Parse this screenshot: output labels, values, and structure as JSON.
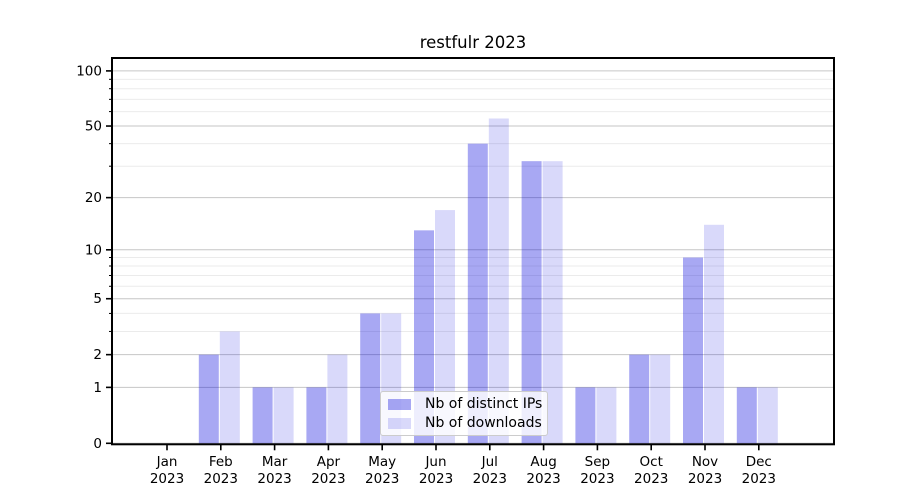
{
  "figure": {
    "title": "restfulr 2023"
  },
  "chart_data": {
    "type": "bar",
    "title": "restfulr 2023",
    "x_categories": [
      "Jan 2023",
      "Feb 2023",
      "Mar 2023",
      "Apr 2023",
      "May 2023",
      "Jun 2023",
      "Jul 2023",
      "Aug 2023",
      "Sep 2023",
      "Oct 2023",
      "Nov 2023",
      "Dec 2023"
    ],
    "series": [
      {
        "name": "Nb of distinct IPs",
        "color": "#0000dc",
        "opacity": 0.34,
        "values": [
          0,
          2,
          1,
          1,
          4,
          13,
          40,
          32,
          1,
          2,
          9,
          1
        ]
      },
      {
        "name": "Nb of downloads",
        "color": "#0000dc",
        "opacity": 0.15,
        "values": [
          0,
          3,
          1,
          2,
          4,
          17,
          55,
          32,
          1,
          2,
          14,
          1
        ]
      }
    ],
    "yscale": "log1p",
    "ylim": [
      0,
      117
    ],
    "yticks_major": [
      0,
      1,
      2,
      5,
      10,
      20,
      50,
      100
    ],
    "yticks_minor": [
      3,
      4,
      6,
      7,
      8,
      9,
      30,
      40,
      60,
      70,
      80,
      90
    ],
    "grid": true,
    "legend_position": "lower center"
  },
  "colors": {
    "grid_major": "#c6c6c6",
    "grid_minor": "#ebebeb",
    "axis": "#000000",
    "tick_label": "#000000",
    "background": "#ffffff"
  }
}
